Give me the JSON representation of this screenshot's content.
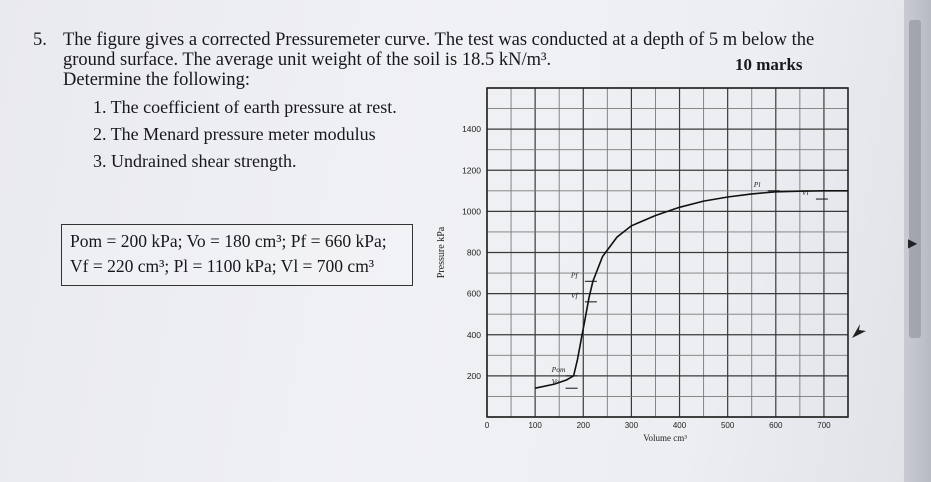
{
  "question": {
    "number": "5.",
    "line1": "The figure gives a corrected Pressuremeter curve. The test was conducted at a depth of 5 m below the",
    "line2": "ground surface. The average unit weight of the soil is 18.5 kN/m³.",
    "line3": "Determine the following:",
    "marks": "10 marks",
    "items": [
      "1. The coefficient of earth pressure at rest.",
      "2. The Menard pressure meter modulus",
      "3. Undrained shear strength."
    ]
  },
  "given_data": {
    "line1": "Pom = 200 kPa; Vo = 180 cm³; Pf = 660 kPa;",
    "line2": "Vf = 220 cm³; Pl = 1100 kPa; Vl = 700 cm³"
  },
  "chart_data": {
    "type": "line",
    "xlabel": "Volume cm³",
    "ylabel": "Pressure kPa",
    "x_ticks": [
      "0",
      "100",
      "200",
      "300",
      "400",
      "500",
      "600",
      "700"
    ],
    "y_ticks": [
      "200",
      "400",
      "600",
      "800",
      "1000",
      "1200",
      "1400"
    ],
    "xlim": [
      0,
      750
    ],
    "ylim": [
      0,
      1600
    ],
    "grid": true,
    "series": [
      {
        "x": [
          100,
          140,
          165,
          180,
          188,
          196,
          204,
          212,
          220,
          240,
          270,
          300,
          350,
          400,
          450,
          500,
          550,
          600,
          650,
          700,
          750
        ],
        "y": [
          140,
          160,
          180,
          200,
          280,
          380,
          480,
          580,
          660,
          780,
          875,
          930,
          980,
          1020,
          1050,
          1070,
          1085,
          1095,
          1098,
          1100,
          1100
        ]
      }
    ],
    "annotations": [
      {
        "label": "Pom",
        "x": 180,
        "y": 200
      },
      {
        "label": "Vo",
        "x": 180,
        "y": 140
      },
      {
        "label": "Pf",
        "x": 220,
        "y": 660
      },
      {
        "label": "Vf",
        "x": 220,
        "y": 560
      },
      {
        "label": "Pl",
        "x": 600,
        "y": 1100
      },
      {
        "label": "Vl",
        "x": 700,
        "y": 1060
      }
    ]
  }
}
